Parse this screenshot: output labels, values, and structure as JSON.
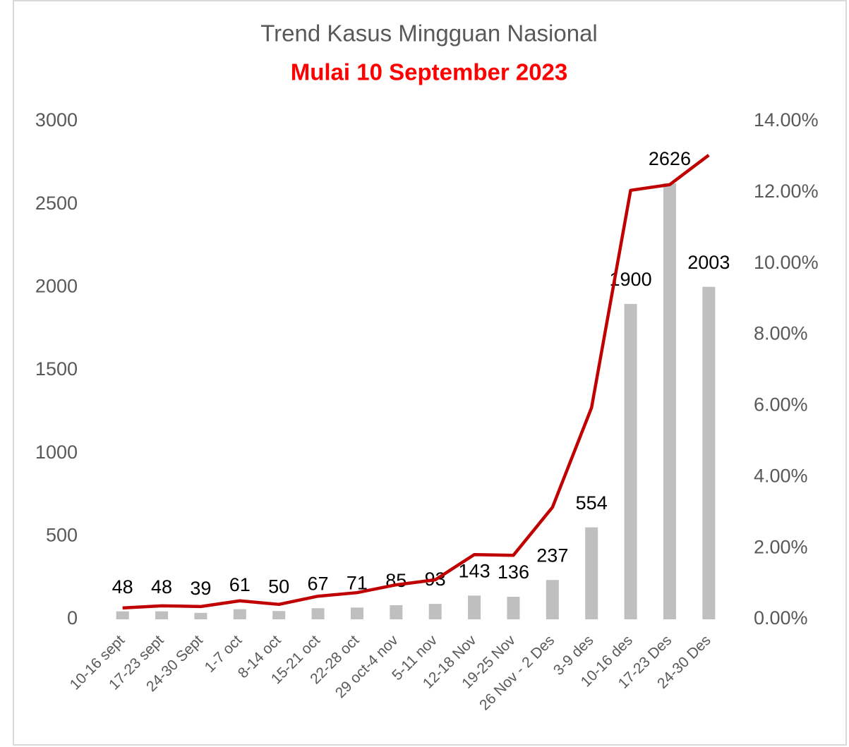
{
  "chart_data": {
    "type": "bar",
    "title": "Trend Kasus Mingguan Nasional",
    "subtitle": "Mulai 10 September 2023",
    "categories": [
      "10-16 sept",
      "17-23 sept",
      "24-30 Sept",
      "1-7 oct",
      "8-14 oct",
      "15-21 oct",
      "22-28 oct",
      "29 oct-4 nov",
      "5-11 nov",
      "12-18 Nov",
      "19-25 Nov",
      "26 Nov - 2 Des",
      "3-9 des",
      "10-16 des",
      "17-23 Des",
      "24-30 Des"
    ],
    "series": [
      {
        "type": "bar",
        "color": "#bfbfbf",
        "values": [
          48,
          48,
          39,
          61,
          50,
          67,
          71,
          85,
          93,
          143,
          136,
          237,
          554,
          1900,
          2626,
          2003
        ]
      },
      {
        "type": "line",
        "axis": "y2",
        "color": "#c00000",
        "values": [
          0.32,
          0.38,
          0.36,
          0.52,
          0.42,
          0.65,
          0.75,
          0.97,
          1.11,
          1.82,
          1.8,
          3.15,
          5.95,
          12.06,
          12.22,
          13.05
        ]
      }
    ],
    "ylim": [
      0,
      3000
    ],
    "yticks": [
      0,
      500,
      1000,
      1500,
      2000,
      2500,
      3000
    ],
    "y2lim": [
      0,
      14
    ],
    "y2ticks": [
      {
        "value": 0,
        "label": "0.00%"
      },
      {
        "value": 2,
        "label": "2.00%"
      },
      {
        "value": 4,
        "label": "4.00%"
      },
      {
        "value": 6,
        "label": "6.00%"
      },
      {
        "value": 8,
        "label": "8.00%"
      },
      {
        "value": 10,
        "label": "10.00%"
      },
      {
        "value": 12,
        "label": "12.00%"
      },
      {
        "value": 14,
        "label": "14.00%"
      }
    ]
  }
}
